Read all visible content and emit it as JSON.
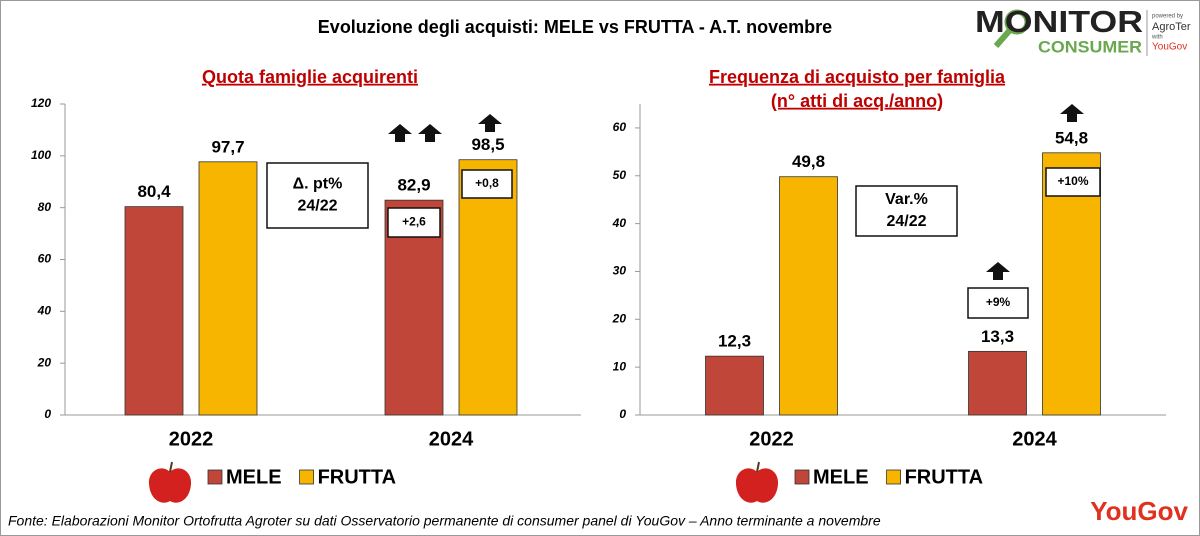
{
  "title": "Evoluzione degli acquisti: MELE vs FRUTTA  - A.T. novembre",
  "logo": {
    "name": "MONITOR",
    "sub": "CONSUMER",
    "powered": "powered by",
    "agroter": "AgroTer",
    "with": "with",
    "yougov": "YouGov"
  },
  "source": "Fonte: Elaborazioni Monitor Ortofrutta Agroter su dati Osservatorio permanente di consumer panel di YouGov  – Anno terminante a novembre",
  "brand": "YouGov",
  "chart_data": [
    {
      "type": "bar",
      "title": [
        "Quota famiglie acquirenti"
      ],
      "categories": [
        "2022",
        "2024"
      ],
      "series": [
        {
          "name": "MELE",
          "color": "#c0463a",
          "values": [
            80.4,
            82.9
          ],
          "value_labels": [
            "80,4",
            "82,9"
          ],
          "change_labels": [
            null,
            "+2,6"
          ]
        },
        {
          "name": "FRUTTA",
          "color": "#f7b500",
          "values": [
            97.7,
            98.5
          ],
          "value_labels": [
            "97,7",
            "98,5"
          ],
          "change_labels": [
            null,
            "+0,8"
          ]
        }
      ],
      "annotation": [
        "Δ. pt%",
        "24/22"
      ],
      "ylim": [
        0,
        120
      ],
      "yticks": [
        0,
        20,
        40,
        60,
        80,
        100,
        120
      ],
      "grid": false
    },
    {
      "type": "bar",
      "title": [
        "Frequenza di acquisto per famiglia",
        "(n° atti di acq./anno)"
      ],
      "categories": [
        "2022",
        "2024"
      ],
      "series": [
        {
          "name": "MELE",
          "color": "#c0463a",
          "values": [
            12.3,
            13.3
          ],
          "value_labels": [
            "12,3",
            "13,3"
          ],
          "change_labels": [
            null,
            "+9%"
          ]
        },
        {
          "name": "FRUTTA",
          "color": "#f7b500",
          "values": [
            49.8,
            54.8
          ],
          "value_labels": [
            "49,8",
            "54,8"
          ],
          "change_labels": [
            null,
            "+10%"
          ]
        }
      ],
      "annotation": [
        "Var.%",
        "24/22"
      ],
      "ylim": [
        0,
        65
      ],
      "yticks": [
        0,
        10,
        20,
        30,
        40,
        50,
        60
      ],
      "grid": false
    }
  ]
}
